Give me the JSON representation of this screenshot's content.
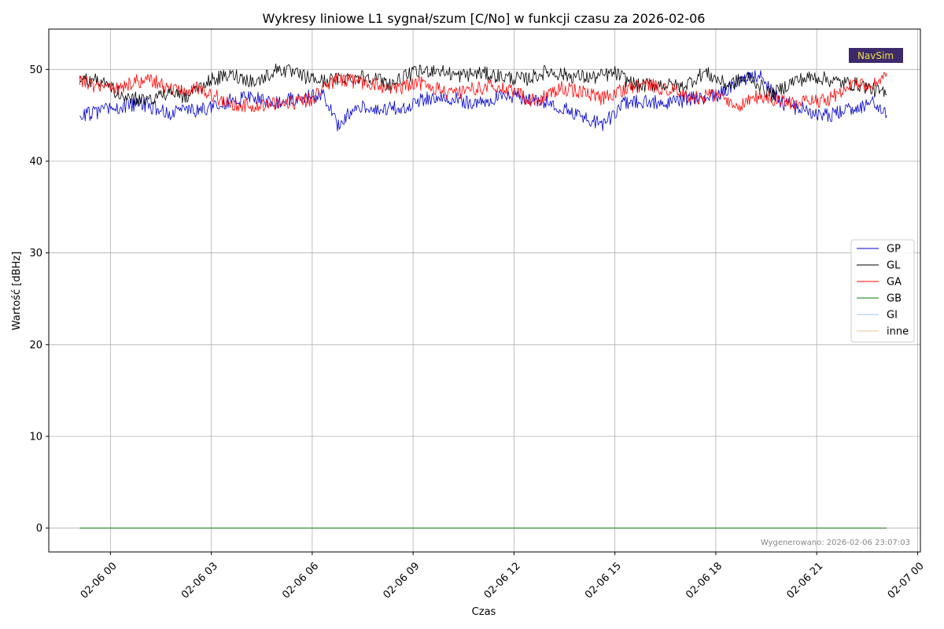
{
  "chart_data": {
    "type": "line",
    "title": "Wykresy liniowe L1 sygnał/szum [C/No] w funkcji czasu za 2026-02-06",
    "xlabel": "Czas",
    "ylabel": "Wartość [dBHz]",
    "xlim": [
      "2026-02-05 22:10",
      "2026-02-07 00:05"
    ],
    "ylim": [
      -2.6,
      54.4
    ],
    "grid": true,
    "legend_position": "center-right",
    "x_ticks": [
      {
        "t": "2026-02-06 00:00",
        "label": "02-06 00"
      },
      {
        "t": "2026-02-06 03:00",
        "label": "02-06 03"
      },
      {
        "t": "2026-02-06 06:00",
        "label": "02-06 06"
      },
      {
        "t": "2026-02-06 09:00",
        "label": "02-06 09"
      },
      {
        "t": "2026-02-06 12:00",
        "label": "02-06 12"
      },
      {
        "t": "2026-02-06 15:00",
        "label": "02-06 15"
      },
      {
        "t": "2026-02-06 18:00",
        "label": "02-06 18"
      },
      {
        "t": "2026-02-06 21:00",
        "label": "02-06 21"
      },
      {
        "t": "2026-02-07 00:00",
        "label": "02-07 00"
      }
    ],
    "y_ticks": [
      0,
      10,
      20,
      30,
      40,
      50
    ],
    "series": [
      {
        "name": "GP",
        "color": "#0000cc",
        "x": [
          "2026-02-05 23:05",
          "2026-02-05 23:35",
          "2026-02-06 00:20",
          "2026-02-06 01:00",
          "2026-02-06 01:40",
          "2026-02-06 02:20",
          "2026-02-06 03:00",
          "2026-02-06 03:40",
          "2026-02-06 04:20",
          "2026-02-06 05:00",
          "2026-02-06 05:40",
          "2026-02-06 06:20",
          "2026-02-06 06:45",
          "2026-02-06 07:20",
          "2026-02-06 08:00",
          "2026-02-06 08:40",
          "2026-02-06 09:20",
          "2026-02-06 10:00",
          "2026-02-06 10:40",
          "2026-02-06 11:20",
          "2026-02-06 12:00",
          "2026-02-06 12:40",
          "2026-02-06 13:20",
          "2026-02-06 14:00",
          "2026-02-06 14:40",
          "2026-02-06 15:20",
          "2026-02-06 16:00",
          "2026-02-06 16:40",
          "2026-02-06 17:20",
          "2026-02-06 18:00",
          "2026-02-06 18:40",
          "2026-02-06 19:20",
          "2026-02-06 20:00",
          "2026-02-06 20:40",
          "2026-02-06 21:20",
          "2026-02-06 22:00",
          "2026-02-06 22:40",
          "2026-02-06 23:05"
        ],
        "values": [
          45.1,
          45.3,
          46.0,
          46.2,
          45.3,
          45.4,
          45.9,
          46.8,
          46.9,
          46.4,
          47.0,
          47.1,
          44.0,
          46.2,
          45.5,
          45.9,
          46.8,
          47.0,
          46.3,
          46.8,
          47.0,
          46.6,
          46.0,
          44.8,
          44.0,
          46.5,
          46.5,
          46.3,
          46.9,
          47.1,
          48.7,
          49.3,
          46.2,
          45.6,
          44.9,
          45.7,
          46.4,
          45.0
        ]
      },
      {
        "name": "GL",
        "color": "#000000",
        "x": [
          "2026-02-05 23:05",
          "2026-02-05 23:35",
          "2026-02-06 00:20",
          "2026-02-06 01:00",
          "2026-02-06 01:40",
          "2026-02-06 02:20",
          "2026-02-06 03:00",
          "2026-02-06 03:40",
          "2026-02-06 04:20",
          "2026-02-06 05:00",
          "2026-02-06 05:40",
          "2026-02-06 06:20",
          "2026-02-06 07:00",
          "2026-02-06 07:40",
          "2026-02-06 08:20",
          "2026-02-06 09:00",
          "2026-02-06 09:40",
          "2026-02-06 10:20",
          "2026-02-06 11:00",
          "2026-02-06 11:40",
          "2026-02-06 12:20",
          "2026-02-06 13:00",
          "2026-02-06 13:40",
          "2026-02-06 14:20",
          "2026-02-06 15:00",
          "2026-02-06 15:40",
          "2026-02-06 16:20",
          "2026-02-06 17:00",
          "2026-02-06 17:40",
          "2026-02-06 18:20",
          "2026-02-06 19:00",
          "2026-02-06 19:40",
          "2026-02-06 20:20",
          "2026-02-06 21:00",
          "2026-02-06 21:40",
          "2026-02-06 22:20",
          "2026-02-06 23:05"
        ],
        "values": [
          49.0,
          48.8,
          47.3,
          46.5,
          47.4,
          47.0,
          48.9,
          49.4,
          48.6,
          50.1,
          49.3,
          48.7,
          49.1,
          49.3,
          48.4,
          49.6,
          50.0,
          49.3,
          49.6,
          49.2,
          48.9,
          49.8,
          49.3,
          49.1,
          49.6,
          48.2,
          48.4,
          48.1,
          49.7,
          48.3,
          49.2,
          47.2,
          48.8,
          49.2,
          48.6,
          48.3,
          47.2
        ]
      },
      {
        "name": "GA",
        "color": "#ff0000",
        "x": [
          "2026-02-05 23:05",
          "2026-02-05 23:35",
          "2026-02-06 00:15",
          "2026-02-06 00:40",
          "2026-02-06 01:20",
          "2026-02-06 02:00",
          "2026-02-06 02:40",
          "2026-02-06 03:20",
          "2026-02-06 04:00",
          "2026-02-06 04:40",
          "2026-02-06 05:20",
          "2026-02-06 06:00",
          "2026-02-06 06:40",
          "2026-02-06 07:20",
          "2026-02-06 08:00",
          "2026-02-06 08:40",
          "2026-02-06 09:20",
          "2026-02-06 10:00",
          "2026-02-06 10:40",
          "2026-02-06 11:20",
          "2026-02-06 12:00",
          "2026-02-06 12:40",
          "2026-02-06 13:20",
          "2026-02-06 14:00",
          "2026-02-06 14:40",
          "2026-02-06 15:20",
          "2026-02-06 16:00",
          "2026-02-06 16:40",
          "2026-02-06 17:20",
          "2026-02-06 18:00",
          "2026-02-06 18:40",
          "2026-02-06 19:20",
          "2026-02-06 20:00",
          "2026-02-06 20:40",
          "2026-02-06 21:20",
          "2026-02-06 22:00",
          "2026-02-06 22:40",
          "2026-02-06 23:05"
        ],
        "values": [
          48.8,
          48.2,
          47.8,
          48.7,
          48.7,
          47.6,
          48.1,
          46.6,
          46.0,
          46.1,
          46.3,
          46.8,
          48.8,
          48.7,
          48.2,
          48.0,
          48.6,
          47.3,
          47.8,
          48.2,
          47.5,
          46.4,
          48.0,
          47.6,
          46.8,
          48.0,
          48.3,
          47.8,
          46.9,
          47.2,
          45.9,
          47.2,
          46.4,
          46.4,
          46.6,
          48.4,
          48.2,
          49.6
        ]
      },
      {
        "name": "GB",
        "color": "#008000",
        "x": [
          "2026-02-05 23:05",
          "2026-02-06 23:05"
        ],
        "values": [
          0,
          0
        ]
      },
      {
        "name": "GI",
        "color": "#9fc5e8",
        "x": [
          "2026-02-05 23:05",
          "2026-02-06 23:05"
        ],
        "values": [
          0,
          0
        ]
      },
      {
        "name": "inne",
        "color": "#f5c08a",
        "x": [
          "2026-02-05 23:05",
          "2026-02-06 23:05"
        ],
        "values": [
          0,
          0
        ]
      }
    ],
    "annotations": [
      "Wygenerowano: 2026-02-06 23:07:03"
    ]
  },
  "logo": {
    "text": "NavSim",
    "background": "#3c2a6b",
    "color": "#f0e040"
  }
}
